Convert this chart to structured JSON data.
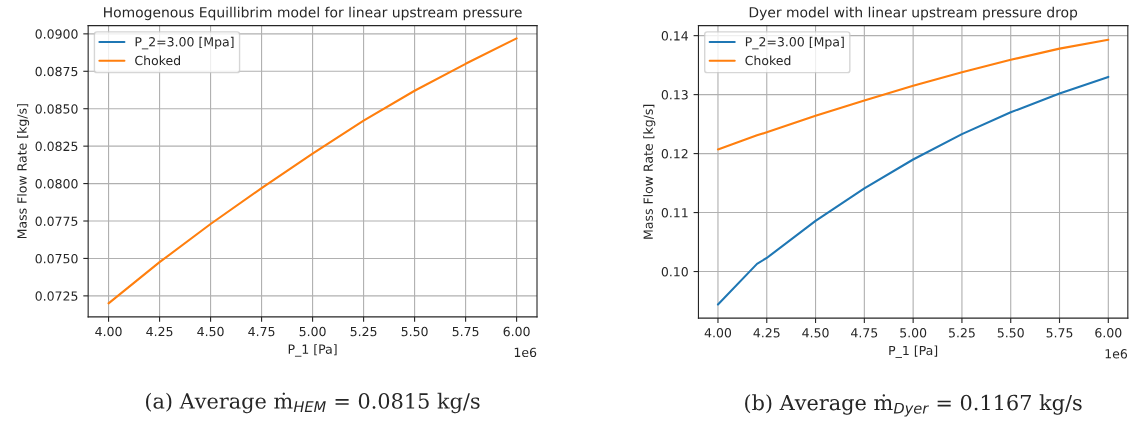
{
  "chart_data": [
    {
      "type": "line",
      "title": "Homogenous Equillibrim model for linear upstream pressure",
      "xlabel": "P_1 [Pa]",
      "ylabel": "Mass Flow Rate [kg/s]",
      "x": [
        4.0,
        4.25,
        4.5,
        4.75,
        5.0,
        5.25,
        5.5,
        5.75,
        6.0
      ],
      "series": [
        {
          "name": "P_2=3.00 [Mpa]",
          "color": "#1f77b4",
          "values": [
            null,
            null,
            null,
            null,
            null,
            null,
            null,
            null,
            null
          ]
        },
        {
          "name": "Choked",
          "color": "#ff7f0e",
          "values": [
            0.072,
            0.07475,
            0.0773,
            0.0797,
            0.082,
            0.0842,
            0.0862,
            0.088,
            0.0897
          ]
        }
      ],
      "xlim": [
        3.9,
        6.1
      ],
      "ylim": [
        0.0711,
        0.09055
      ],
      "xticks": [
        {
          "value": 4.0,
          "label": "4.00"
        },
        {
          "value": 4.25,
          "label": "4.25"
        },
        {
          "value": 4.5,
          "label": "4.50"
        },
        {
          "value": 4.75,
          "label": "4.75"
        },
        {
          "value": 5.0,
          "label": "5.00"
        },
        {
          "value": 5.25,
          "label": "5.25"
        },
        {
          "value": 5.5,
          "label": "5.50"
        },
        {
          "value": 5.75,
          "label": "5.75"
        },
        {
          "value": 6.0,
          "label": "6.00"
        }
      ],
      "yticks": [
        {
          "value": 0.0725,
          "label": "0.0725"
        },
        {
          "value": 0.075,
          "label": "0.0750"
        },
        {
          "value": 0.0775,
          "label": "0.0775"
        },
        {
          "value": 0.08,
          "label": "0.0800"
        },
        {
          "value": 0.0825,
          "label": "0.0825"
        },
        {
          "value": 0.085,
          "label": "0.0850"
        },
        {
          "value": 0.0875,
          "label": "0.0875"
        },
        {
          "value": 0.09,
          "label": "0.0900"
        }
      ],
      "grid": true,
      "legend": "top left",
      "annotations": [
        "1e6",
        "(a) Average ṁ$_{HEM}$ = 0.0815 kg/s"
      ]
    },
    {
      "type": "line",
      "title": "Dyer model with linear upstream pressure drop",
      "xlabel": "P_1 [Pa]",
      "ylabel": "Mass Flow Rate [kg/s]",
      "x": [
        4.0,
        4.2,
        4.25,
        4.5,
        4.75,
        5.0,
        5.25,
        5.5,
        5.75,
        6.0
      ],
      "series": [
        {
          "name": "P_2=3.00 [Mpa]",
          "color": "#1f77b4",
          "values": [
            0.0944,
            0.1013,
            0.1023,
            0.1086,
            0.1141,
            0.119,
            0.1233,
            0.127,
            0.1302,
            0.133
          ]
        },
        {
          "name": "Choked",
          "color": "#ff7f0e",
          "values": [
            0.1207,
            0.1231,
            0.1236,
            0.1264,
            0.129,
            0.1315,
            0.1338,
            0.1359,
            0.1378,
            0.1393
          ]
        }
      ],
      "xlim": [
        3.9,
        6.1
      ],
      "ylim": [
        0.0921,
        0.1417
      ],
      "xticks": [
        {
          "value": 4.0,
          "label": "4.00"
        },
        {
          "value": 4.25,
          "label": "4.25"
        },
        {
          "value": 4.5,
          "label": "4.50"
        },
        {
          "value": 4.75,
          "label": "4.75"
        },
        {
          "value": 5.0,
          "label": "5.00"
        },
        {
          "value": 5.25,
          "label": "5.25"
        },
        {
          "value": 5.5,
          "label": "5.50"
        },
        {
          "value": 5.75,
          "label": "5.75"
        },
        {
          "value": 6.0,
          "label": "6.00"
        }
      ],
      "yticks": [
        {
          "value": 0.1,
          "label": "0.10"
        },
        {
          "value": 0.11,
          "label": "0.11"
        },
        {
          "value": 0.12,
          "label": "0.12"
        },
        {
          "value": 0.13,
          "label": "0.13"
        },
        {
          "value": 0.14,
          "label": "0.14"
        }
      ],
      "grid": true,
      "legend": "top left",
      "annotations": [
        "1e6",
        "(b) Average ṁ$_{Dyer}$ = 0.1167 kg/s"
      ]
    }
  ]
}
